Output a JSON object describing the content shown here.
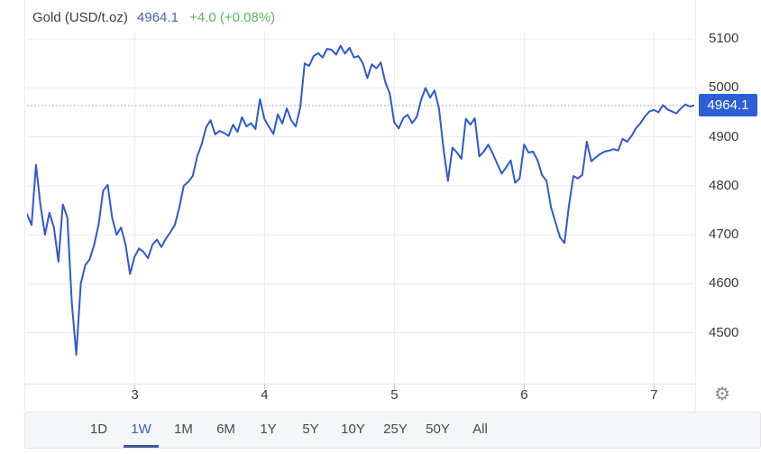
{
  "header": {
    "symbol": "Gold (USD/t.oz)",
    "price": "4964.1",
    "change": "+4.0 (+0.08%)"
  },
  "price_badge": "4964.1",
  "icons": {
    "gear": "⚙"
  },
  "colors": {
    "line": "#2e5ad0",
    "badge_bg": "#2c5fd6",
    "grid": "#ececec",
    "dotted": "#9a9a9a",
    "axis_text": "#3a3a3a",
    "header_symbol": "#3d3d3d",
    "header_price": "#4466a8",
    "header_change": "#59b75f",
    "toolbar_text": "#4a4a4a",
    "toolbar_active": "#3a62b0",
    "toolbar_underline": "#3a5a9b"
  },
  "toolbar": {
    "ranges": [
      {
        "label": "1D",
        "active": false
      },
      {
        "label": "1W",
        "active": true
      },
      {
        "label": "1M",
        "active": false
      },
      {
        "label": "6M",
        "active": false
      },
      {
        "label": "1Y",
        "active": false
      },
      {
        "label": "5Y",
        "active": false
      },
      {
        "label": "10Y",
        "active": false
      },
      {
        "label": "25Y",
        "active": false
      },
      {
        "label": "50Y",
        "active": false
      },
      {
        "label": "All",
        "active": false
      }
    ]
  },
  "chart_data": {
    "type": "line",
    "title": "Gold (USD/t.oz)",
    "xlabel": "",
    "ylabel": "",
    "x_start": 2.17,
    "x_end": 7.31,
    "x_ticks": [
      3,
      4,
      5,
      6,
      7
    ],
    "y_ticks": [
      4500,
      4600,
      4700,
      4800,
      4900,
      5000,
      5100
    ],
    "ylim": [
      4396,
      5115
    ],
    "grid": true,
    "legend": false,
    "current_price": 4964.1,
    "line_color": "#2e5ad0",
    "values": [
      4742,
      4720,
      4843,
      4760,
      4700,
      4745,
      4715,
      4645,
      4762,
      4735,
      4560,
      4455,
      4600,
      4638,
      4650,
      4680,
      4722,
      4790,
      4802,
      4735,
      4700,
      4715,
      4680,
      4620,
      4655,
      4672,
      4665,
      4652,
      4680,
      4690,
      4675,
      4692,
      4705,
      4720,
      4756,
      4800,
      4808,
      4820,
      4860,
      4885,
      4920,
      4934,
      4905,
      4912,
      4908,
      4902,
      4925,
      4910,
      4940,
      4921,
      4928,
      4916,
      4977,
      4937,
      4921,
      4906,
      4946,
      4927,
      4958,
      4934,
      4921,
      4960,
      5050,
      5045,
      5065,
      5071,
      5062,
      5080,
      5078,
      5068,
      5086,
      5070,
      5082,
      5062,
      5065,
      5050,
      5020,
      5048,
      5040,
      5052,
      5012,
      4988,
      4930,
      4917,
      4938,
      4945,
      4928,
      4940,
      4975,
      5000,
      4980,
      4995,
      4958,
      4875,
      4810,
      4878,
      4868,
      4855,
      4937,
      4925,
      4938,
      4860,
      4870,
      4884,
      4866,
      4845,
      4825,
      4838,
      4852,
      4806,
      4815,
      4884,
      4868,
      4870,
      4852,
      4822,
      4810,
      4756,
      4726,
      4695,
      4683,
      4758,
      4820,
      4815,
      4822,
      4890,
      4850,
      4858,
      4865,
      4870,
      4872,
      4875,
      4872,
      4896,
      4890,
      4902,
      4918,
      4928,
      4942,
      4952,
      4955,
      4950,
      4965,
      4956,
      4952,
      4948,
      4958,
      4966,
      4962,
      4964.1
    ]
  }
}
